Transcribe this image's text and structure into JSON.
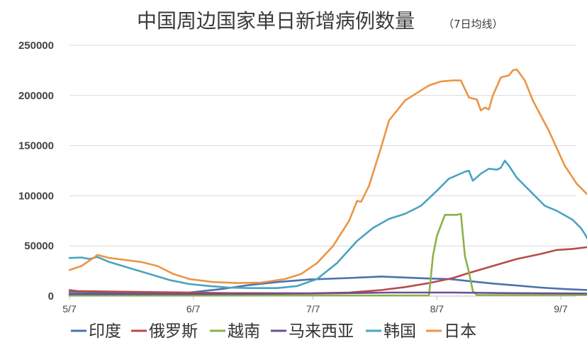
{
  "chart_data": {
    "type": "line",
    "title": "中国周边国家单日新增病例数量",
    "subtitle": "（7日均线）",
    "x_tick_labels": [
      "5/7",
      "6/7",
      "7/7",
      "8/7",
      "9/7"
    ],
    "x_tick_days": [
      0,
      31,
      61,
      92,
      123
    ],
    "y_ticks": [
      0,
      50000,
      100000,
      150000,
      200000,
      250000
    ],
    "ylim": [
      0,
      250000
    ],
    "grid": true,
    "legend_position": "bottom",
    "series": [
      {
        "name": "印度",
        "color": "#4a73ad",
        "points": [
          [
            0,
            4000
          ],
          [
            20,
            3000
          ],
          [
            30,
            3500
          ],
          [
            38,
            7000
          ],
          [
            45,
            11000
          ],
          [
            52,
            14000
          ],
          [
            60,
            16500
          ],
          [
            70,
            18000
          ],
          [
            78,
            19500
          ],
          [
            84,
            18500
          ],
          [
            90,
            17500
          ],
          [
            95,
            17000
          ],
          [
            100,
            15000
          ],
          [
            106,
            12500
          ],
          [
            112,
            10500
          ],
          [
            118,
            8500
          ],
          [
            124,
            7000
          ],
          [
            130,
            6000
          ]
        ]
      },
      {
        "name": "俄罗斯",
        "color": "#b64c48",
        "points": [
          [
            0,
            6000
          ],
          [
            2,
            5000
          ],
          [
            10,
            4500
          ],
          [
            20,
            4000
          ],
          [
            30,
            3500
          ],
          [
            40,
            3000
          ],
          [
            60,
            2800
          ],
          [
            70,
            3500
          ],
          [
            78,
            6000
          ],
          [
            84,
            9000
          ],
          [
            90,
            13000
          ],
          [
            96,
            18000
          ],
          [
            100,
            23000
          ],
          [
            106,
            30000
          ],
          [
            112,
            37000
          ],
          [
            118,
            42000
          ],
          [
            122,
            46000
          ],
          [
            126,
            47000
          ],
          [
            130,
            49000
          ]
        ]
      },
      {
        "name": "越南",
        "color": "#8cb14c",
        "points": [
          [
            0,
            500
          ],
          [
            90,
            600
          ],
          [
            91,
            40000
          ],
          [
            92,
            60000
          ],
          [
            94,
            81000
          ],
          [
            97,
            81000
          ],
          [
            98,
            82000
          ],
          [
            99,
            40000
          ],
          [
            100,
            24000
          ],
          [
            101,
            5000
          ],
          [
            102,
            1000
          ],
          [
            130,
            1000
          ]
        ]
      },
      {
        "name": "马来西亚",
        "color": "#6b4f94",
        "points": [
          [
            0,
            2000
          ],
          [
            30,
            2000
          ],
          [
            60,
            2500
          ],
          [
            80,
            3500
          ],
          [
            96,
            3500
          ],
          [
            110,
            3000
          ],
          [
            130,
            2500
          ]
        ]
      },
      {
        "name": "韩国",
        "color": "#4aa3c0",
        "points": [
          [
            0,
            38000
          ],
          [
            3,
            38500
          ],
          [
            5,
            37000
          ],
          [
            7,
            39000
          ],
          [
            10,
            34000
          ],
          [
            15,
            28000
          ],
          [
            20,
            22000
          ],
          [
            25,
            16000
          ],
          [
            30,
            12000
          ],
          [
            35,
            10000
          ],
          [
            40,
            8500
          ],
          [
            45,
            8000
          ],
          [
            52,
            8000
          ],
          [
            57,
            10000
          ],
          [
            62,
            17000
          ],
          [
            67,
            33000
          ],
          [
            72,
            55000
          ],
          [
            76,
            68000
          ],
          [
            80,
            77000
          ],
          [
            84,
            82000
          ],
          [
            88,
            90000
          ],
          [
            92,
            105000
          ],
          [
            95,
            117000
          ],
          [
            99,
            124000
          ],
          [
            100,
            125000
          ],
          [
            101,
            115000
          ],
          [
            103,
            122000
          ],
          [
            105,
            127000
          ],
          [
            107,
            126000
          ],
          [
            108,
            128000
          ],
          [
            109,
            135000
          ],
          [
            110,
            130000
          ],
          [
            112,
            118000
          ],
          [
            116,
            102000
          ],
          [
            119,
            90000
          ],
          [
            122,
            85000
          ],
          [
            126,
            76000
          ],
          [
            128,
            68000
          ],
          [
            129,
            62000
          ],
          [
            130,
            55000
          ]
        ]
      },
      {
        "name": "日本",
        "color": "#ec9545",
        "points": [
          [
            0,
            26000
          ],
          [
            3,
            30000
          ],
          [
            6,
            38000
          ],
          [
            7,
            41000
          ],
          [
            10,
            38000
          ],
          [
            14,
            36000
          ],
          [
            18,
            34000
          ],
          [
            22,
            30000
          ],
          [
            26,
            22000
          ],
          [
            30,
            17000
          ],
          [
            36,
            14000
          ],
          [
            42,
            13000
          ],
          [
            48,
            13500
          ],
          [
            54,
            17000
          ],
          [
            58,
            22000
          ],
          [
            62,
            33000
          ],
          [
            66,
            50000
          ],
          [
            70,
            75000
          ],
          [
            72,
            95000
          ],
          [
            73,
            94000
          ],
          [
            75,
            110000
          ],
          [
            78,
            148000
          ],
          [
            80,
            175000
          ],
          [
            84,
            195000
          ],
          [
            88,
            205000
          ],
          [
            90,
            210000
          ],
          [
            93,
            214000
          ],
          [
            96,
            215000
          ],
          [
            98,
            215000
          ],
          [
            100,
            198000
          ],
          [
            102,
            196000
          ],
          [
            103,
            185000
          ],
          [
            104,
            188000
          ],
          [
            105,
            186000
          ],
          [
            106,
            200000
          ],
          [
            108,
            218000
          ],
          [
            110,
            220000
          ],
          [
            111,
            225000
          ],
          [
            112,
            226000
          ],
          [
            114,
            215000
          ],
          [
            116,
            195000
          ],
          [
            120,
            165000
          ],
          [
            124,
            130000
          ],
          [
            127,
            112000
          ],
          [
            130,
            100000
          ]
        ]
      }
    ]
  }
}
